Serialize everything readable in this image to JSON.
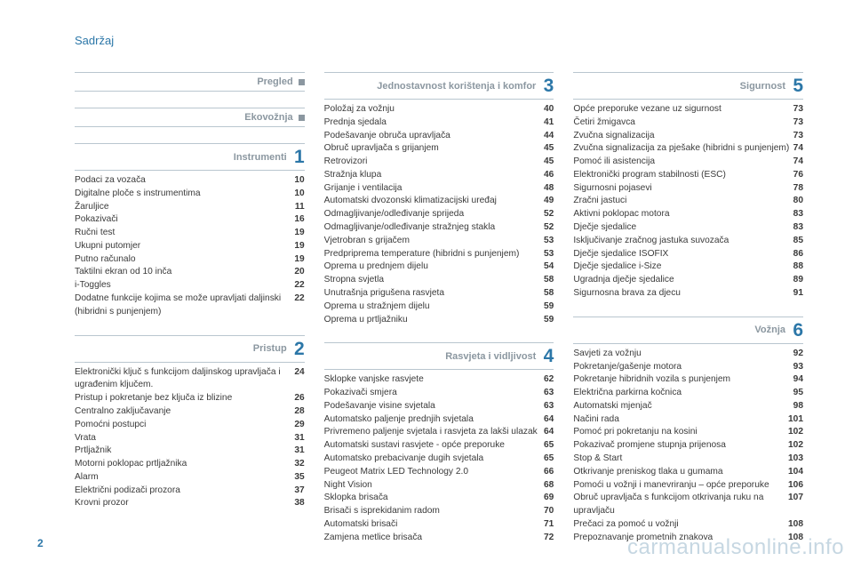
{
  "title": "Sadržaj",
  "page_number": "2",
  "watermark": "carmanualsonline.info",
  "colors": {
    "accent": "#2c77a8",
    "muted": "#8b97a0",
    "rule": "#b9c6cf",
    "text": "#3a3a3a"
  },
  "columns": [
    {
      "sections": [
        {
          "title": "Pregled",
          "marker": "square",
          "items": []
        },
        {
          "title": "Ekovožnja",
          "marker": "square",
          "items": []
        },
        {
          "title": "Instrumenti",
          "marker": "1",
          "items": [
            {
              "label": "Podaci za vozača",
              "page": "10"
            },
            {
              "label": "Digitalne ploče s instrumentima",
              "page": "10"
            },
            {
              "label": "Žaruljice",
              "page": "11"
            },
            {
              "label": "Pokazivači",
              "page": "16"
            },
            {
              "label": "Ručni test",
              "page": "19"
            },
            {
              "label": "Ukupni putomjer",
              "page": "19"
            },
            {
              "label": "Putno računalo",
              "page": "19"
            },
            {
              "label": "Taktilni ekran od 10 inča",
              "page": "20"
            },
            {
              "label": "i-Toggles",
              "page": "22"
            },
            {
              "label": "Dodatne funkcije kojima se može upravljati daljinski (hibridni s punjenjem)",
              "page": "22"
            }
          ]
        },
        {
          "title": "Pristup",
          "marker": "2",
          "items": [
            {
              "label": "Elektronički ključ s funkcijom daljinskog upravljača i ugrađenim ključem.",
              "page": "24"
            },
            {
              "label": "Pristup i pokretanje bez ključa iz blizine",
              "page": "26"
            },
            {
              "label": "Centralno zaključavanje",
              "page": "28"
            },
            {
              "label": "Pomoćni postupci",
              "page": "29"
            },
            {
              "label": "Vrata",
              "page": "31"
            },
            {
              "label": "Prtljažnik",
              "page": "31"
            },
            {
              "label": "Motorni poklopac prtljažnika",
              "page": "32"
            },
            {
              "label": "Alarm",
              "page": "35"
            },
            {
              "label": "Električni podizači prozora",
              "page": "37"
            },
            {
              "label": "Krovni prozor",
              "page": "38"
            }
          ]
        }
      ]
    },
    {
      "sections": [
        {
          "title": "Jednostavnost korištenja i komfor",
          "marker": "3",
          "items": [
            {
              "label": "Položaj za vožnju",
              "page": "40"
            },
            {
              "label": "Prednja sjedala",
              "page": "41"
            },
            {
              "label": "Podešavanje obruča upravljača",
              "page": "44"
            },
            {
              "label": "Obruč upravljača s grijanjem",
              "page": "45"
            },
            {
              "label": "Retrovizori",
              "page": "45"
            },
            {
              "label": "Stražnja klupa",
              "page": "46"
            },
            {
              "label": "Grijanje i ventilacija",
              "page": "48"
            },
            {
              "label": "Automatski dvozonski klimatizacijski uređaj",
              "page": "49"
            },
            {
              "label": "Odmagljivanje/odleđivanje sprijeda",
              "page": "52"
            },
            {
              "label": "Odmagljivanje/odleđivanje stražnjeg stakla",
              "page": "52"
            },
            {
              "label": "Vjetrobran s grijačem",
              "page": "53"
            },
            {
              "label": "Predpriprema temperature (hibridni s punjenjem)",
              "page": "53"
            },
            {
              "label": "Oprema u prednjem dijelu",
              "page": "54"
            },
            {
              "label": "Stropna svjetla",
              "page": "58"
            },
            {
              "label": "Unutrašnja prigušena rasvjeta",
              "page": "58"
            },
            {
              "label": "Oprema u stražnjem dijelu",
              "page": "59"
            },
            {
              "label": "Oprema u prtljažniku",
              "page": "59"
            }
          ]
        },
        {
          "title": "Rasvjeta i vidljivost",
          "marker": "4",
          "items": [
            {
              "label": "Sklopke vanjske rasvjete",
              "page": "62"
            },
            {
              "label": "Pokazivači smjera",
              "page": "63"
            },
            {
              "label": "Podešavanje visine svjetala",
              "page": "63"
            },
            {
              "label": "Automatsko paljenje prednjih svjetala",
              "page": "64"
            },
            {
              "label": "Privremeno paljenje svjetala i rasvjeta za lakši ulazak",
              "page": "64"
            },
            {
              "label": "Automatski sustavi rasvjete - opće preporuke",
              "page": "65"
            },
            {
              "label": "Automatsko prebacivanje dugih svjetala",
              "page": "65"
            },
            {
              "label": "Peugeot Matrix LED Technology 2.0",
              "page": "66"
            },
            {
              "label": "Night Vision",
              "page": "68"
            },
            {
              "label": "Sklopka brisača",
              "page": "69"
            },
            {
              "label": "Brisači s isprekidanim radom",
              "page": "70"
            },
            {
              "label": "Automatski brisači",
              "page": "71"
            },
            {
              "label": "Zamjena metlice brisača",
              "page": "72"
            }
          ]
        }
      ]
    },
    {
      "sections": [
        {
          "title": "Sigurnost",
          "marker": "5",
          "items": [
            {
              "label": "Opće preporuke vezane uz sigurnost",
              "page": "73"
            },
            {
              "label": "Četiri žmigavca",
              "page": "73"
            },
            {
              "label": "Zvučna signalizacija",
              "page": "73"
            },
            {
              "label": "Zvučna signalizacija za pješake (hibridni s punjenjem)",
              "page": "74"
            },
            {
              "label": "Pomoć ili asistencija",
              "page": "74"
            },
            {
              "label": "Elektronički program stabilnosti (ESC)",
              "page": "76"
            },
            {
              "label": "Sigurnosni pojasevi",
              "page": "78"
            },
            {
              "label": "Zračni jastuci",
              "page": "80"
            },
            {
              "label": "Aktivni poklopac motora",
              "page": "83"
            },
            {
              "label": "Dječje sjedalice",
              "page": "83"
            },
            {
              "label": "Isključivanje zračnog jastuka suvozača",
              "page": "85"
            },
            {
              "label": "Dječje sjedalice ISOFIX",
              "page": "86"
            },
            {
              "label": "Dječje sjedalice i-Size",
              "page": "88"
            },
            {
              "label": "Ugradnja dječje sjedalice",
              "page": "89"
            },
            {
              "label": "Sigurnosna brava za djecu",
              "page": "91"
            }
          ]
        },
        {
          "title": "Vožnja",
          "marker": "6",
          "items": [
            {
              "label": "Savjeti za vožnju",
              "page": "92"
            },
            {
              "label": "Pokretanje/gašenje motora",
              "page": "93"
            },
            {
              "label": "Pokretanje hibridnih vozila s punjenjem",
              "page": "94"
            },
            {
              "label": "Električna parkirna kočnica",
              "page": "95"
            },
            {
              "label": "Automatski mjenjač",
              "page": "98"
            },
            {
              "label": "Načini rada",
              "page": "101"
            },
            {
              "label": "Pomoć pri pokretanju na kosini",
              "page": "102"
            },
            {
              "label": "Pokazivač promjene stupnja prijenosa",
              "page": "102"
            },
            {
              "label": "Stop & Start",
              "page": "103"
            },
            {
              "label": "Otkrivanje preniskog tlaka u gumama",
              "page": "104"
            },
            {
              "label": "Pomoći u vožnji i manevriranju – opće preporuke",
              "page": "106"
            },
            {
              "label": "Obruč upravljača s funkcijom otkrivanja ruku na upravljaču",
              "page": "107"
            },
            {
              "label": "Prečaci za pomoć u vožnji",
              "page": "108"
            },
            {
              "label": "Prepoznavanje prometnih znakova",
              "page": "108"
            }
          ]
        }
      ]
    }
  ]
}
